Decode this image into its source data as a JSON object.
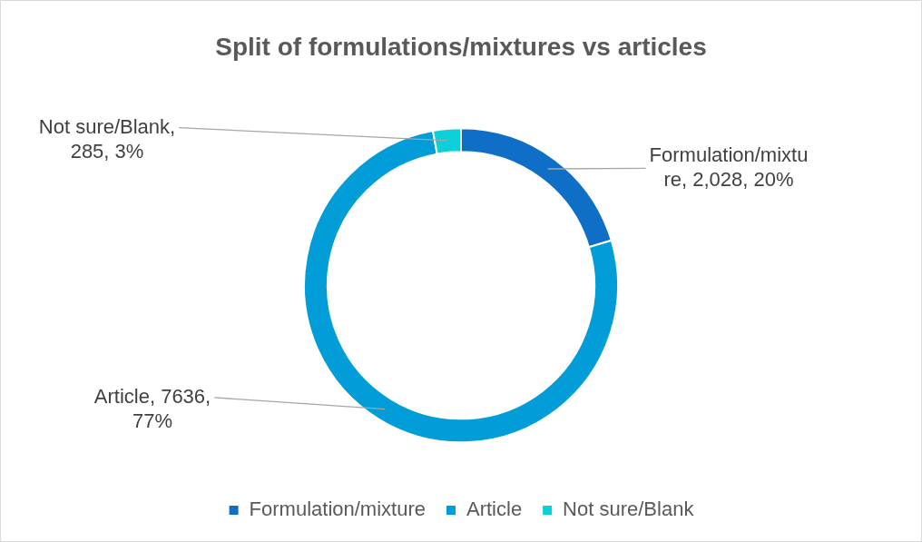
{
  "chart_data": {
    "type": "donut",
    "title": "Split of formulations/mixtures vs articles",
    "categories": [
      "Formulation/mixture",
      "Article",
      "Not sure/Blank"
    ],
    "values": [
      2028,
      7636,
      285
    ],
    "colors": [
      "#0f6fc6",
      "#009dd9",
      "#0bd0d9"
    ],
    "value_labels": [
      "Formulation/mixture, 2,028, 20%",
      "Article, 7636, 77%",
      "Not sure/Blank, 285, 3%"
    ],
    "legend": "bottom"
  }
}
